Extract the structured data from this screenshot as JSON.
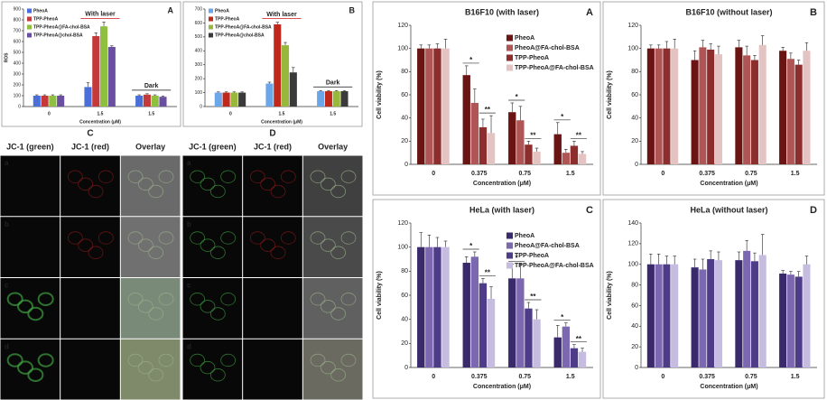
{
  "chart_data": [
    {
      "type": "bar",
      "panel": "A",
      "ylabel": "ROS",
      "xlabel": "Concentration (μM)",
      "categories": [
        "0",
        "1.5",
        "1.5"
      ],
      "group_annotations": [
        null,
        {
          "text": "With laser",
          "color": "#d01010"
        },
        {
          "text": "Dark",
          "color": "#111111"
        }
      ],
      "series": [
        {
          "name": "PheoA",
          "color": "#4a6fd8",
          "values": [
            100,
            180,
            100
          ],
          "errors": [
            8,
            40,
            8
          ]
        },
        {
          "name": "TPP-PheoA",
          "color": "#c43a3a",
          "values": [
            100,
            650,
            110
          ],
          "errors": [
            8,
            30,
            8
          ]
        },
        {
          "name": "TPP-PheoA@FA-chol-BSA",
          "color": "#8fbf3f",
          "values": [
            100,
            740,
            100
          ],
          "errors": [
            8,
            40,
            8
          ]
        },
        {
          "name": "TPP-PheoA@chol-BSA",
          "color": "#6a4fa0",
          "values": [
            100,
            550,
            90
          ],
          "errors": [
            8,
            10,
            8
          ]
        }
      ],
      "ylim": [
        0,
        900
      ],
      "yticks": [
        0,
        100,
        200,
        300,
        400,
        500,
        600,
        700,
        800,
        900
      ],
      "legend": "upper left"
    },
    {
      "type": "bar",
      "panel": "B",
      "xlabel": "Concentration (μM)",
      "categories": [
        "0",
        "1.5",
        "1.5"
      ],
      "group_annotations": [
        null,
        {
          "text": "With laser",
          "color": "#d01010"
        },
        {
          "text": "Dark",
          "color": "#111111"
        }
      ],
      "series": [
        {
          "name": "PheoA",
          "color": "#6aa6e8",
          "values": [
            100,
            165,
            110
          ],
          "errors": [
            5,
            10,
            5
          ]
        },
        {
          "name": "TPP-PheoA",
          "color": "#c0281c",
          "values": [
            100,
            590,
            110
          ],
          "errors": [
            5,
            15,
            5
          ]
        },
        {
          "name": "TPP-PheoA@FA-chol-BSA",
          "color": "#98b83c",
          "values": [
            100,
            440,
            110
          ],
          "errors": [
            5,
            20,
            5
          ]
        },
        {
          "name": "TPP-PheoA@chol-BSA",
          "color": "#3a3a3a",
          "values": [
            100,
            245,
            110
          ],
          "errors": [
            5,
            35,
            5
          ]
        }
      ],
      "ylim": [
        0,
        700
      ],
      "yticks": [
        0,
        100,
        200,
        300,
        400,
        500,
        600,
        700
      ],
      "legend": "upper left"
    },
    {
      "type": "bar",
      "panel": "A",
      "title": "B16F10 (with laser)",
      "ylabel": "Cell viability (%)",
      "xlabel": "Concentration (μM)",
      "categories": [
        "0",
        "0.375",
        "0.75",
        "1.5"
      ],
      "significance": [
        [],
        [
          "*",
          "**"
        ],
        [
          "*",
          "**"
        ],
        [
          "*",
          "**"
        ]
      ],
      "series": [
        {
          "name": "PheoA",
          "color": "#6b1414",
          "values": [
            100,
            77,
            45,
            26
          ],
          "errors": [
            3,
            8,
            8,
            10
          ]
        },
        {
          "name": "PheoA@FA-chol-BSA",
          "color": "#b05555",
          "values": [
            100,
            53,
            38,
            10
          ],
          "errors": [
            3,
            12,
            12,
            3
          ]
        },
        {
          "name": "TPP-PheoA",
          "color": "#8c2e2e",
          "values": [
            100,
            32,
            17,
            16
          ],
          "errors": [
            4,
            7,
            3,
            4
          ]
        },
        {
          "name": "TPP-PheoA@FA-chol-BSA",
          "color": "#e4c3c3",
          "values": [
            100,
            27,
            11,
            9
          ],
          "errors": [
            8,
            15,
            3,
            2
          ]
        }
      ],
      "ylim": [
        0,
        120
      ],
      "yticks": [
        0,
        20,
        40,
        60,
        80,
        100,
        120
      ],
      "legend": "upper right"
    },
    {
      "type": "bar",
      "panel": "B",
      "title": "B16F10 (without laser)",
      "ylabel": "Cell viability (%)",
      "xlabel": "Concentration (μM)",
      "categories": [
        "0",
        "0.375",
        "0.75",
        "1.5"
      ],
      "series": [
        {
          "color": "#6b1414",
          "values": [
            100,
            90,
            101,
            98
          ],
          "errors": [
            3,
            8,
            6,
            3
          ]
        },
        {
          "color": "#b05555",
          "values": [
            100,
            101,
            94,
            91
          ],
          "errors": [
            3,
            6,
            8,
            5
          ]
        },
        {
          "color": "#8c2e2e",
          "values": [
            100,
            99,
            90,
            86
          ],
          "errors": [
            6,
            5,
            4,
            4
          ]
        },
        {
          "color": "#e4c3c3",
          "values": [
            100,
            95,
            103,
            98
          ],
          "errors": [
            8,
            7,
            8,
            7
          ]
        }
      ],
      "ylim": [
        0,
        120
      ],
      "yticks": [
        0,
        20,
        40,
        60,
        80,
        100,
        120
      ]
    },
    {
      "type": "bar",
      "panel": "C",
      "title": "HeLa (with laser)",
      "ylabel": "Cell viability (%)",
      "xlabel": "Concentration (μM)",
      "categories": [
        "0",
        "0.375",
        "0.75",
        "1.5"
      ],
      "significance": [
        [],
        [
          "*",
          "**"
        ],
        [
          "*",
          "**"
        ],
        [
          "*",
          "**"
        ]
      ],
      "series": [
        {
          "name": "PheoA",
          "color": "#3b2a6b",
          "values": [
            100,
            87,
            74,
            25
          ],
          "errors": [
            12,
            5,
            12,
            10
          ]
        },
        {
          "name": "PheoA@FA-chol-BSA",
          "color": "#7c68b0",
          "values": [
            100,
            92,
            74,
            34
          ],
          "errors": [
            10,
            4,
            12,
            3
          ]
        },
        {
          "name": "TPP-PheoA",
          "color": "#4e3c88",
          "values": [
            100,
            70,
            49,
            16
          ],
          "errors": [
            8,
            4,
            5,
            3
          ]
        },
        {
          "name": "TPP-PheoA@FA-chol-BSA",
          "color": "#c5bce0",
          "values": [
            100,
            57,
            40,
            13
          ],
          "errors": [
            5,
            10,
            8,
            3
          ]
        }
      ],
      "ylim": [
        0,
        120
      ],
      "yticks": [
        0,
        20,
        40,
        60,
        80,
        100,
        120
      ],
      "legend": "upper right"
    },
    {
      "type": "bar",
      "panel": "D",
      "title": "HeLa (without laser)",
      "ylabel": "Cell viability (%)",
      "xlabel": "Concentration (μM)",
      "categories": [
        "0",
        "0.375",
        "0.75",
        "1.5"
      ],
      "series": [
        {
          "color": "#3b2a6b",
          "values": [
            100,
            97,
            104,
            91
          ],
          "errors": [
            10,
            8,
            8,
            3
          ]
        },
        {
          "color": "#7c68b0",
          "values": [
            100,
            95,
            113,
            90
          ],
          "errors": [
            10,
            10,
            10,
            3
          ]
        },
        {
          "color": "#4e3c88",
          "values": [
            100,
            105,
            103,
            88
          ],
          "errors": [
            8,
            8,
            8,
            5
          ]
        },
        {
          "color": "#c5bce0",
          "values": [
            100,
            104,
            109,
            100
          ],
          "errors": [
            8,
            8,
            20,
            8
          ]
        }
      ],
      "ylim": [
        0,
        140
      ],
      "yticks": [
        0,
        20,
        40,
        60,
        80,
        100,
        120,
        140
      ]
    }
  ],
  "microscopy": {
    "panels": [
      {
        "letter": "C",
        "columns": [
          "JC-1 (green)",
          "JC-1 (red)",
          "Overlay"
        ],
        "rows": [
          "a",
          "b",
          "c",
          "d"
        ]
      },
      {
        "letter": "D",
        "columns": [
          "JC-1 (green)",
          "JC-1 (red)",
          "Overlay"
        ],
        "rows": [
          "a",
          "b",
          "c",
          "d"
        ]
      }
    ]
  }
}
